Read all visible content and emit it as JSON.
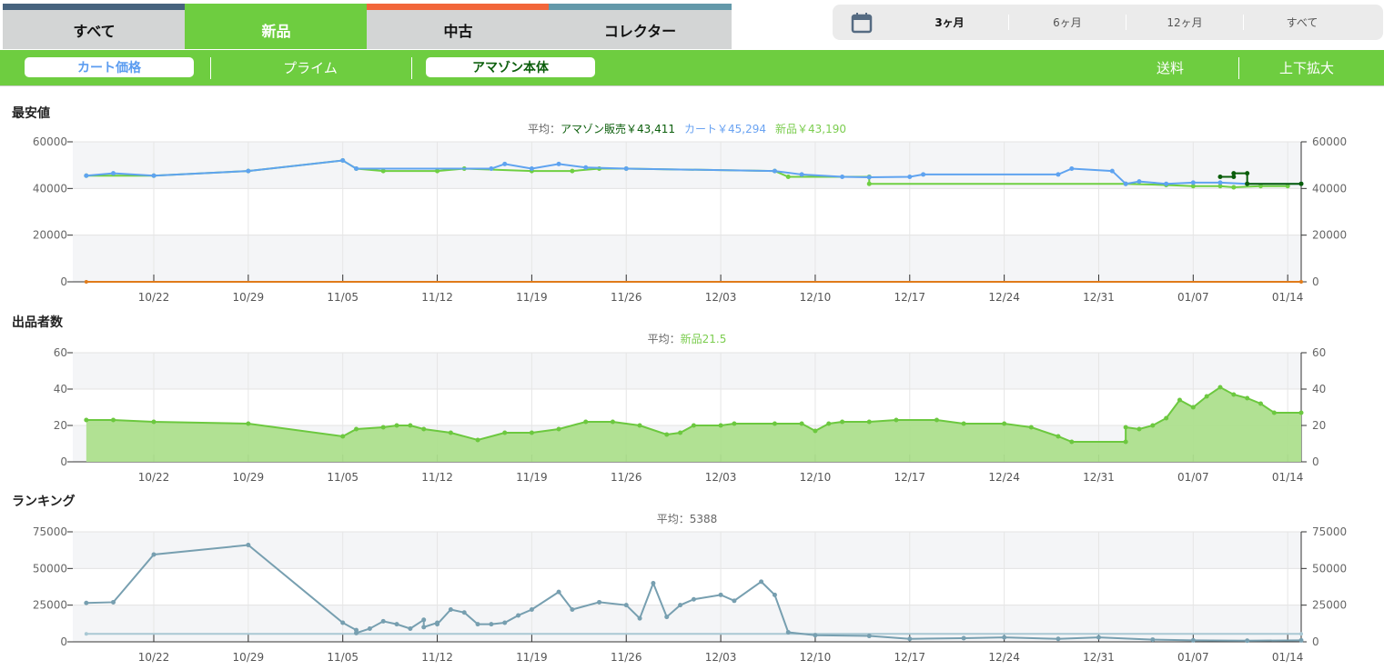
{
  "tabs": [
    {
      "label": "すべて",
      "color": "#47637e"
    },
    {
      "label": "新品",
      "color": "#6ecd40",
      "active": true
    },
    {
      "label": "中古",
      "color": "#f2663a"
    },
    {
      "label": "コレクター",
      "color": "#6399aa"
    }
  ],
  "range": {
    "icon": "calendar-icon",
    "options": [
      "3ヶ月",
      "6ヶ月",
      "12ヶ月",
      "すべて"
    ],
    "selected": "3ヶ月"
  },
  "toolbar": {
    "cart": "カート価格",
    "prime": "プライム",
    "amazon": "アマゾン本体",
    "shipping": "送料",
    "zoom": "上下拡大"
  },
  "sections": [
    "最安値",
    "出品者数",
    "ランキング"
  ],
  "chart_data": [
    {
      "type": "line",
      "title_parts": [
        {
          "text": "平均：",
          "color": "#666"
        },
        {
          "text": "アマゾン販売￥43,411",
          "color": "#0b5e0b"
        },
        {
          "text": "カート￥45,294",
          "color": "#6aa3f2"
        },
        {
          "text": "新品￥43,190",
          "color": "#7ccd50"
        }
      ],
      "ylim": [
        0,
        60000
      ],
      "yticks": [
        0,
        20000,
        40000,
        60000
      ],
      "xlim": [
        "10/16",
        "01/15"
      ],
      "xticks": [
        "10/22",
        "10/29",
        "11/05",
        "11/12",
        "11/19",
        "11/26",
        "12/03",
        "12/10",
        "12/17",
        "12/24",
        "12/31",
        "01/07",
        "01/14"
      ],
      "grid": true,
      "series": [
        {
          "name": "新品",
          "color": "#6fcf42",
          "x": [
            "10/17",
            "10/22",
            "10/29",
            "11/05",
            "11/06",
            "11/08",
            "11/12",
            "11/14",
            "11/19",
            "11/22",
            "11/24",
            "11/26",
            "12/07",
            "12/08",
            "12/14",
            "12/14",
            "01/02",
            "01/05",
            "01/07",
            "01/09",
            "01/10",
            "01/12",
            "01/14"
          ],
          "y": [
            45500,
            45500,
            47500,
            52000,
            48500,
            47500,
            47500,
            48500,
            47500,
            47500,
            48500,
            48500,
            47500,
            45000,
            45000,
            42000,
            42000,
            41500,
            41000,
            41000,
            40500,
            41000,
            41000
          ]
        },
        {
          "name": "カート",
          "color": "#5fa3f0",
          "x": [
            "10/17",
            "10/19",
            "10/22",
            "10/29",
            "11/05",
            "11/06",
            "11/16",
            "11/17",
            "11/19",
            "11/21",
            "11/23",
            "11/26",
            "12/07",
            "12/09",
            "12/12",
            "12/14",
            "12/17",
            "12/18",
            "12/28",
            "12/29",
            "01/01",
            "01/02",
            "01/03",
            "01/05",
            "01/07",
            "01/09",
            "01/11",
            "01/15"
          ],
          "y": [
            45500,
            46500,
            45500,
            47500,
            52000,
            48500,
            48500,
            50500,
            48500,
            50500,
            49000,
            48500,
            47500,
            46000,
            45000,
            44800,
            45000,
            46000,
            46000,
            48500,
            47500,
            42000,
            43000,
            42000,
            42500,
            42500,
            42000,
            42000
          ]
        },
        {
          "name": "アマゾン販売",
          "color": "#0b5e0b",
          "x": [
            "01/09",
            "01/10",
            "01/10",
            "01/11",
            "01/11",
            "01/15"
          ],
          "y": [
            45000,
            45000,
            46500,
            46500,
            42000,
            42000
          ]
        },
        {
          "color": "#e07b1a",
          "x": [
            "10/17",
            "01/15"
          ],
          "y": [
            0,
            0
          ]
        }
      ]
    },
    {
      "type": "area",
      "title_parts": [
        {
          "text": "平均：",
          "color": "#666"
        },
        {
          "text": "新品21.5",
          "color": "#7ccd50"
        }
      ],
      "ylim": [
        0,
        60
      ],
      "yticks": [
        0,
        20,
        40,
        60
      ],
      "xlim": [
        "10/16",
        "01/15"
      ],
      "xticks": [
        "10/22",
        "10/29",
        "11/05",
        "11/12",
        "11/19",
        "11/26",
        "12/03",
        "12/10",
        "12/17",
        "12/24",
        "12/31",
        "01/07",
        "01/14"
      ],
      "grid": true,
      "series": [
        {
          "name": "新品",
          "color": "#6cc83f",
          "fill": "#addf8d",
          "x": [
            "10/17",
            "10/19",
            "10/22",
            "10/29",
            "11/05",
            "11/06",
            "11/08",
            "11/09",
            "11/10",
            "11/11",
            "11/13",
            "11/15",
            "11/17",
            "11/19",
            "11/21",
            "11/23",
            "11/25",
            "11/27",
            "11/29",
            "11/30",
            "12/01",
            "12/03",
            "12/04",
            "12/07",
            "12/09",
            "12/10",
            "12/11",
            "12/12",
            "12/14",
            "12/16",
            "12/19",
            "12/21",
            "12/24",
            "12/26",
            "12/28",
            "12/29",
            "01/02",
            "01/02",
            "01/03",
            "01/04",
            "01/05",
            "01/06",
            "01/07",
            "01/08",
            "01/09",
            "01/10",
            "01/11",
            "01/12",
            "01/13",
            "01/15"
          ],
          "y": [
            23,
            23,
            22,
            21,
            14,
            18,
            19,
            20,
            20,
            18,
            16,
            12,
            16,
            16,
            18,
            22,
            22,
            20,
            15,
            16,
            20,
            20,
            21,
            21,
            21,
            17,
            21,
            22,
            22,
            23,
            23,
            21,
            21,
            19,
            14,
            11,
            11,
            19,
            18,
            20,
            24,
            34,
            30,
            36,
            41,
            37,
            35,
            32,
            27,
            27
          ]
        }
      ]
    },
    {
      "type": "line",
      "title_parts": [
        {
          "text": "平均：5388",
          "color": "#666"
        }
      ],
      "ylim": [
        0,
        75000
      ],
      "yticks": [
        0,
        25000,
        50000,
        75000
      ],
      "xlim": [
        "10/16",
        "01/15"
      ],
      "xticks": [
        "10/22",
        "10/29",
        "11/05",
        "11/12",
        "11/19",
        "11/26",
        "12/03",
        "12/10",
        "12/17",
        "12/24",
        "12/31",
        "01/07",
        "01/14"
      ],
      "grid": true,
      "series": [
        {
          "color": "#a9c8d4",
          "x": [
            "10/17",
            "01/15"
          ],
          "y": [
            5388,
            5388
          ]
        },
        {
          "name": "ランキング",
          "color": "#779fb0",
          "x": [
            "10/17",
            "10/19",
            "10/22",
            "10/29",
            "11/05",
            "11/06",
            "11/06",
            "11/07",
            "11/08",
            "11/09",
            "11/10",
            "11/11",
            "11/11",
            "11/12",
            "11/12",
            "11/13",
            "11/14",
            "11/15",
            "11/16",
            "11/17",
            "11/18",
            "11/19",
            "11/21",
            "11/22",
            "11/24",
            "11/26",
            "11/27",
            "11/28",
            "11/29",
            "11/30",
            "12/01",
            "12/03",
            "12/04",
            "12/06",
            "12/07",
            "12/08",
            "12/10",
            "12/14",
            "12/17",
            "12/21",
            "12/24",
            "12/28",
            "12/31",
            "01/04",
            "01/07",
            "01/11",
            "01/15"
          ],
          "y": [
            26500,
            27000,
            59500,
            66000,
            13000,
            8000,
            6000,
            9000,
            14000,
            12000,
            9000,
            15000,
            10000,
            13000,
            12000,
            22000,
            20000,
            12000,
            12000,
            13000,
            18000,
            22000,
            34000,
            22000,
            27000,
            25000,
            16000,
            40000,
            17000,
            25000,
            29000,
            32000,
            28000,
            41000,
            32000,
            6500,
            4500,
            4000,
            2000,
            2500,
            3000,
            2000,
            3000,
            1500,
            1000,
            800,
            1000
          ]
        }
      ]
    }
  ]
}
